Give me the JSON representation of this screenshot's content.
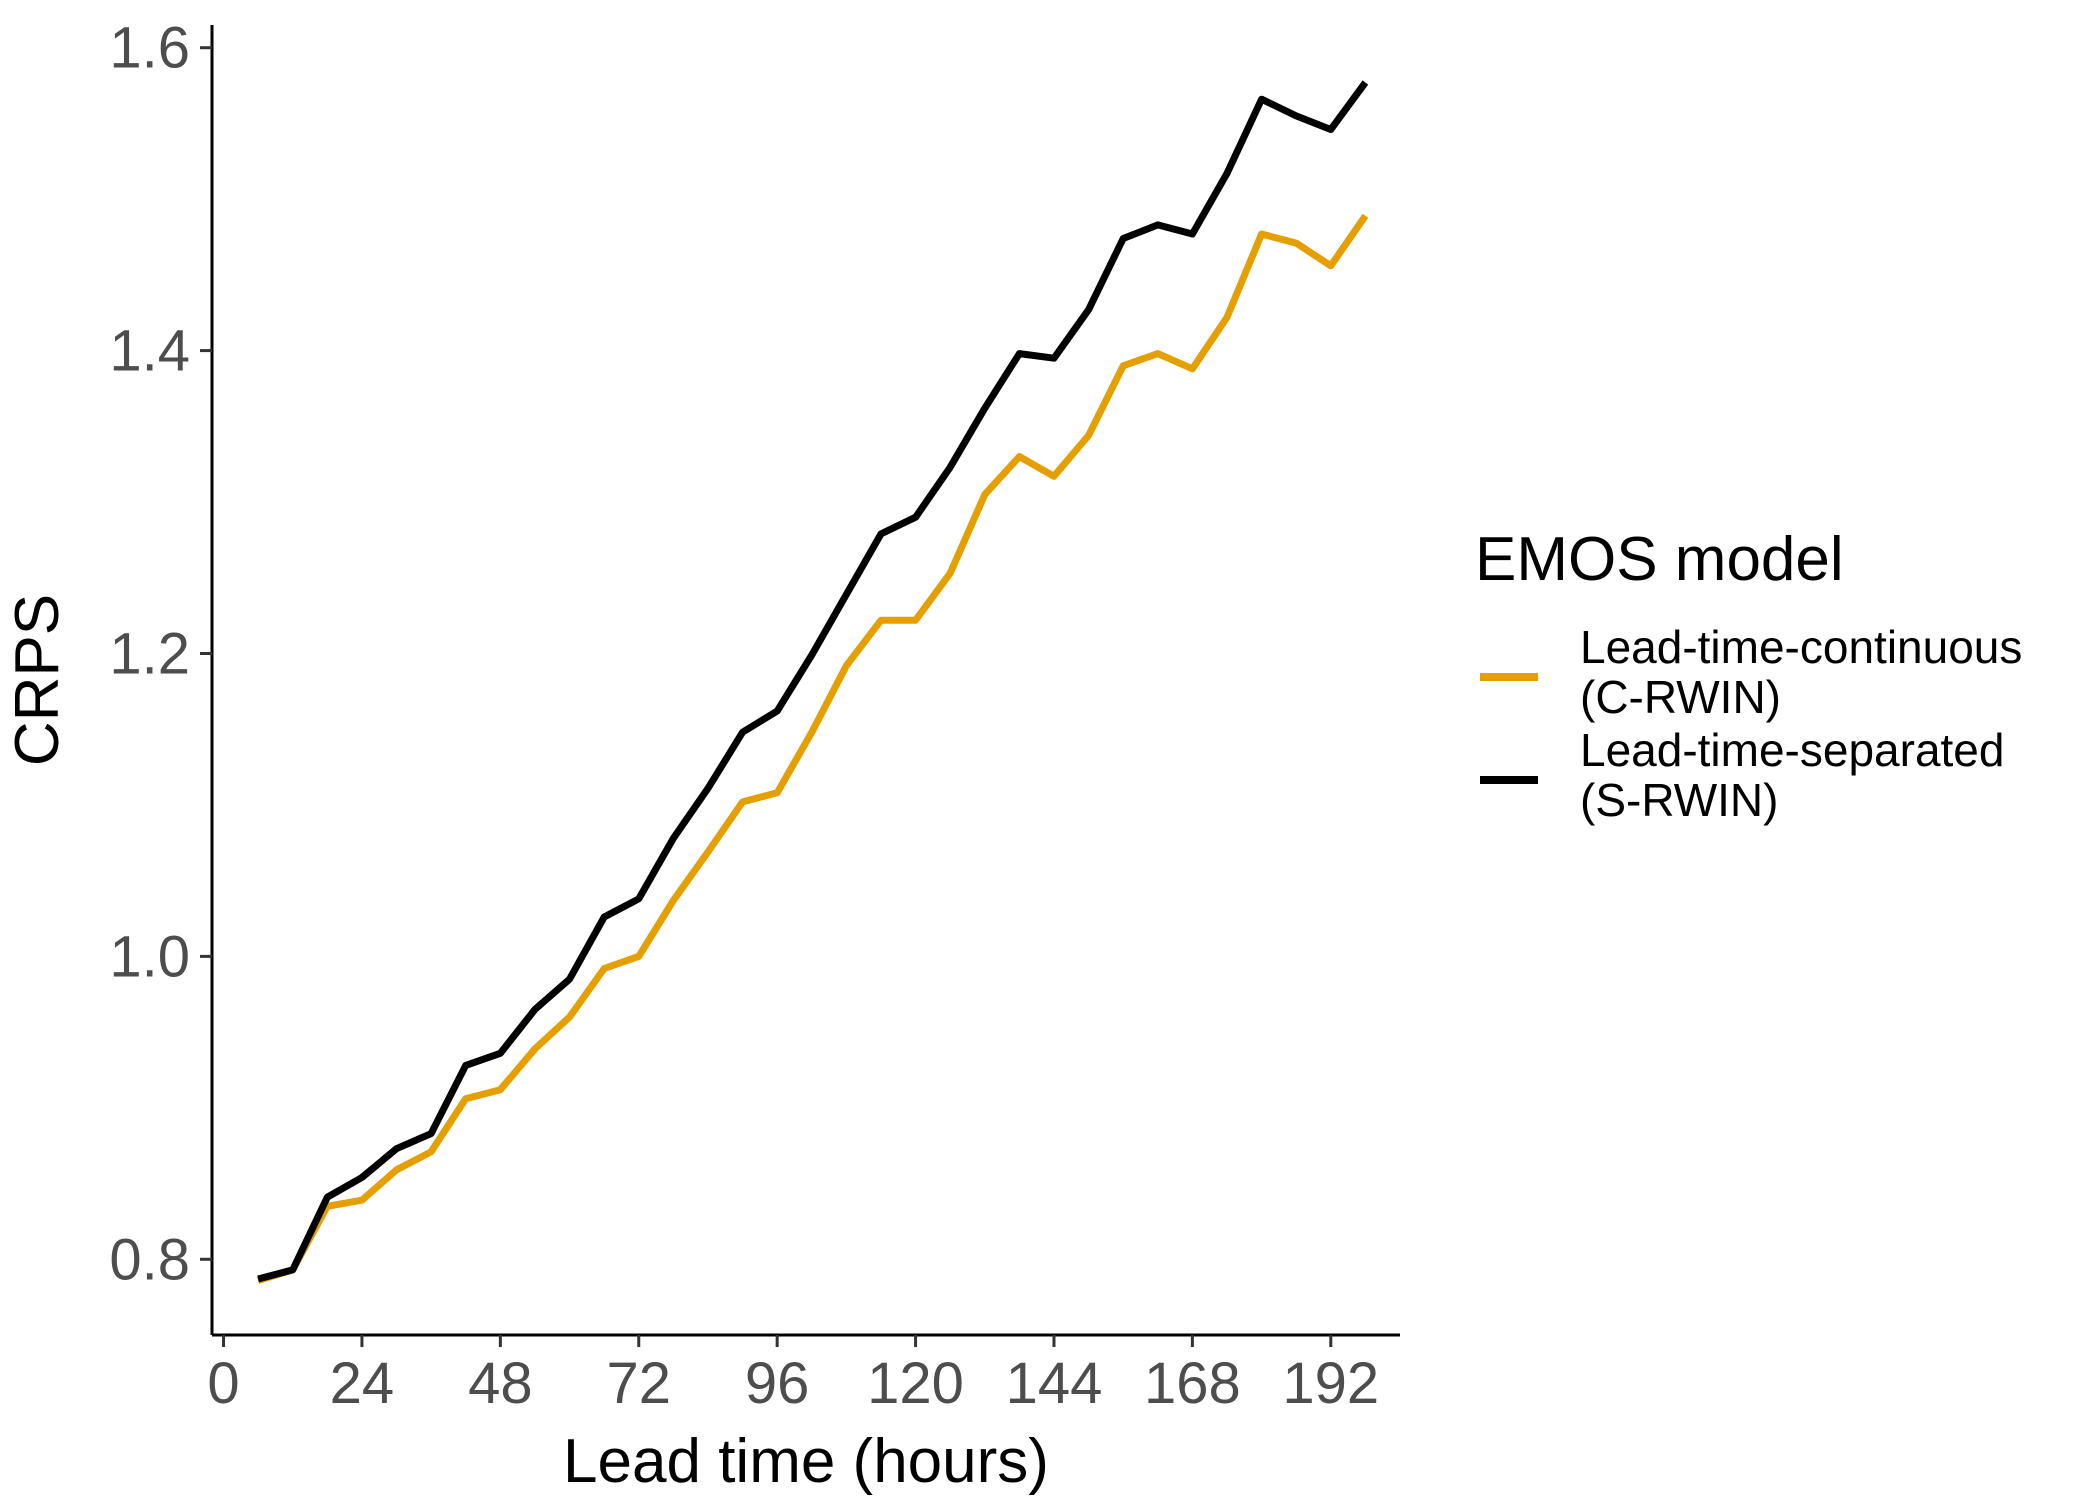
{
  "chart_data": {
    "type": "line",
    "xlabel": "Lead time (hours)",
    "ylabel": "CRPS",
    "xlim": [
      -2,
      204
    ],
    "ylim": [
      0.75,
      1.615
    ],
    "x_ticks": [
      0,
      24,
      48,
      72,
      96,
      120,
      144,
      168,
      192
    ],
    "x_tick_labels": [
      "0",
      "24",
      "48",
      "72",
      "96",
      "120",
      "144",
      "168",
      "192"
    ],
    "y_ticks": [
      0.8,
      1.0,
      1.2,
      1.4,
      1.6
    ],
    "y_tick_labels": [
      "0.8",
      "1.0",
      "1.2",
      "1.4",
      "1.6"
    ],
    "grid": false,
    "legend_position": "right",
    "legend_title": "EMOS model",
    "x": [
      6,
      12,
      18,
      24,
      30,
      36,
      42,
      48,
      54,
      60,
      66,
      72,
      78,
      84,
      90,
      96,
      102,
      108,
      114,
      120,
      126,
      132,
      138,
      144,
      150,
      156,
      162,
      168,
      174,
      180,
      186,
      192,
      198
    ],
    "series": [
      {
        "name": "Lead-time-continuous (C-RWIN)",
        "label_lines": [
          "Lead-time-continuous",
          "(C-RWIN)"
        ],
        "color": "#E69F00",
        "values": [
          0.786,
          0.793,
          0.835,
          0.839,
          0.859,
          0.871,
          0.906,
          0.912,
          0.939,
          0.96,
          0.992,
          1.0,
          1.037,
          1.069,
          1.102,
          1.108,
          1.148,
          1.192,
          1.222,
          1.222,
          1.253,
          1.305,
          1.33,
          1.317,
          1.344,
          1.39,
          1.398,
          1.388,
          1.422,
          1.477,
          1.471,
          1.456,
          1.489
        ]
      },
      {
        "name": "Lead-time-separated (S-RWIN)",
        "label_lines": [
          "Lead-time-separated",
          "(S-RWIN)"
        ],
        "color": "#000000",
        "values": [
          0.787,
          0.793,
          0.841,
          0.854,
          0.873,
          0.883,
          0.928,
          0.936,
          0.965,
          0.985,
          1.026,
          1.038,
          1.078,
          1.111,
          1.148,
          1.162,
          1.199,
          1.239,
          1.279,
          1.29,
          1.323,
          1.362,
          1.398,
          1.395,
          1.427,
          1.474,
          1.483,
          1.477,
          1.517,
          1.566,
          1.555,
          1.546,
          1.577
        ]
      }
    ]
  }
}
